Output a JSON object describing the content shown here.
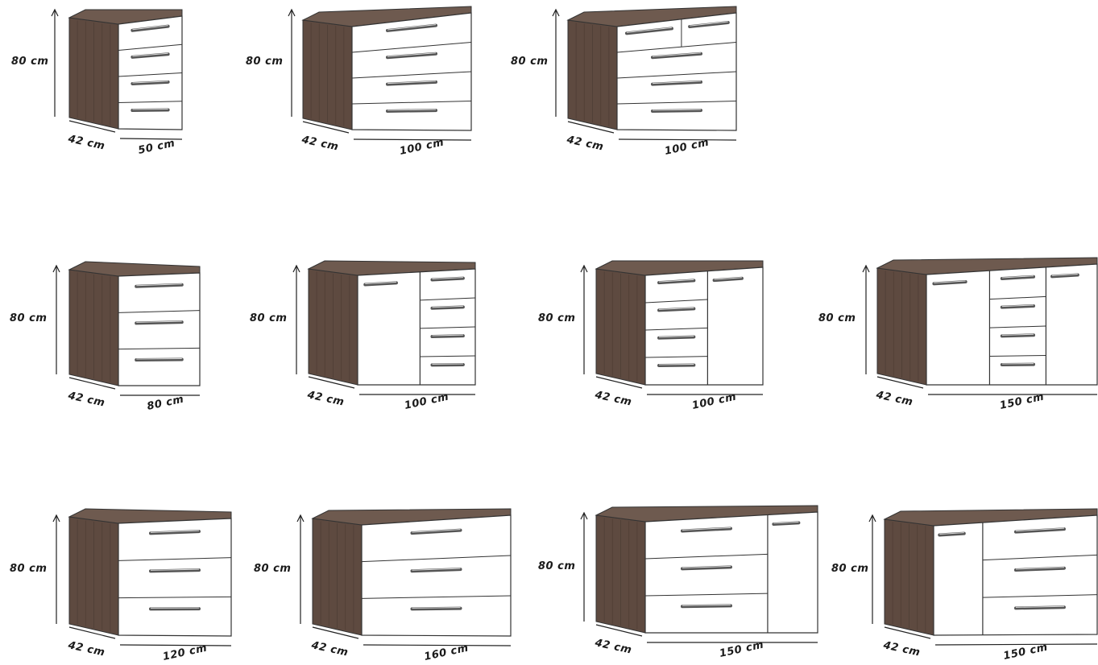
{
  "colors": {
    "wood": "#5e4a40",
    "wood_dark": "#4a3a32",
    "top": "#6e5a4f",
    "front": "#ffffff",
    "line": "#333333",
    "handle": "#555555"
  },
  "cabinets": [
    {
      "id": "c1",
      "height_label": "80 cm",
      "depth_label": "42 cm",
      "width_label": "50 cm",
      "fronts": [
        {
          "type": "drawers",
          "count": 4,
          "w": 1
        }
      ]
    },
    {
      "id": "c2",
      "height_label": "80 cm",
      "depth_label": "42 cm",
      "width_label": "100 cm",
      "fronts": [
        {
          "type": "drawers",
          "count": 4,
          "w": 1
        }
      ]
    },
    {
      "id": "c3",
      "height_label": "80 cm",
      "depth_label": "42 cm",
      "width_label": "100 cm",
      "fronts": [
        {
          "type": "drawers-top-split",
          "count": 4,
          "w": 1
        }
      ]
    },
    {
      "id": "c4",
      "height_label": "80 cm",
      "depth_label": "42 cm",
      "width_label": "80 cm",
      "fronts": [
        {
          "type": "drawers",
          "count": 3,
          "w": 1
        }
      ]
    },
    {
      "id": "c5",
      "height_label": "80 cm",
      "depth_label": "42 cm",
      "width_label": "100 cm",
      "fronts": [
        {
          "type": "door",
          "w": 0.53
        },
        {
          "type": "drawers",
          "count": 4,
          "w": 0.47
        }
      ]
    },
    {
      "id": "c6",
      "height_label": "80 cm",
      "depth_label": "42 cm",
      "width_label": "100 cm",
      "fronts": [
        {
          "type": "drawers",
          "count": 4,
          "w": 0.53
        },
        {
          "type": "door",
          "w": 0.47
        }
      ]
    },
    {
      "id": "c7",
      "height_label": "80 cm",
      "depth_label": "42 cm",
      "width_label": "150 cm",
      "fronts": [
        {
          "type": "door",
          "w": 0.37
        },
        {
          "type": "drawers",
          "count": 4,
          "w": 0.33
        },
        {
          "type": "door",
          "w": 0.3
        }
      ]
    },
    {
      "id": "c8",
      "height_label": "80 cm",
      "depth_label": "42 cm",
      "width_label": "120 cm",
      "fronts": [
        {
          "type": "drawers",
          "count": 3,
          "w": 1
        }
      ]
    },
    {
      "id": "c9",
      "height_label": "80 cm",
      "depth_label": "42 cm",
      "width_label": "160 cm",
      "fronts": [
        {
          "type": "drawers",
          "count": 3,
          "w": 1
        }
      ]
    },
    {
      "id": "c10",
      "height_label": "80 cm",
      "depth_label": "42 cm",
      "width_label": "150 cm",
      "fronts": [
        {
          "type": "drawers",
          "count": 3,
          "w": 0.71
        },
        {
          "type": "door",
          "w": 0.29
        }
      ]
    },
    {
      "id": "c11",
      "height_label": "80 cm",
      "depth_label": "42 cm",
      "width_label": "150 cm",
      "fronts": [
        {
          "type": "door",
          "w": 0.3
        },
        {
          "type": "drawers",
          "count": 3,
          "w": 0.7
        }
      ]
    }
  ]
}
